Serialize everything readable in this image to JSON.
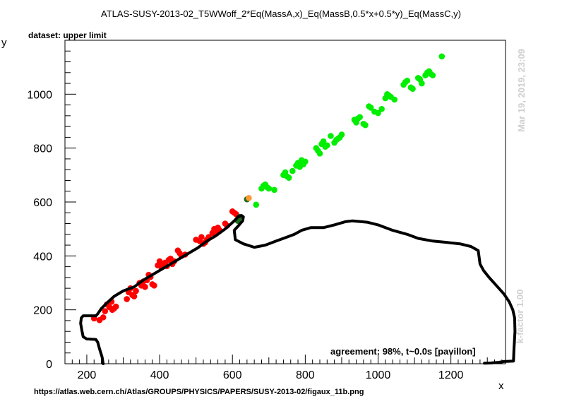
{
  "figure": {
    "title": "ATLAS-SUSY-2013-02_T5WWoff_2*Eq(MassA,x)_Eq(MassB,0.5*x+0.5*y)_Eq(MassC,y)",
    "subtitle": "dataset: upper limit",
    "source_url": "https://atlas.web.cern.ch/Atlas/GROUPS/PHYSICS/PAPERS/SUSY-2013-02/figaux_11b.png",
    "agreement": "agreement: 98%, t~0.0s [pavillon]",
    "timestamp": "Mar 19, 2019, 23:09",
    "kfactor": "k-factor 1.00"
  },
  "chart_data": {
    "type": "scatter",
    "xlabel": "x",
    "ylabel": "y",
    "xlim": [
      140,
      1350
    ],
    "ylim": [
      0,
      1200
    ],
    "xticks": [
      200,
      400,
      600,
      800,
      1000,
      1200
    ],
    "yticks": [
      0,
      200,
      400,
      600,
      800,
      1000
    ],
    "grid": false,
    "colors": {
      "excluded": "#ff0000",
      "allowed": "#00ee00",
      "border_excluded": "#1a6b1a",
      "border_allowed": "#ff9933",
      "limit_line": "#000000"
    },
    "series": [
      {
        "role": "excluded",
        "points": [
          [
            220,
            168
          ],
          [
            235,
            162
          ],
          [
            245,
            172
          ],
          [
            250,
            195
          ],
          [
            255,
            220
          ],
          [
            262,
            210
          ],
          [
            268,
            230
          ],
          [
            270,
            200
          ],
          [
            275,
            205
          ],
          [
            280,
            212
          ],
          [
            310,
            240
          ],
          [
            315,
            265
          ],
          [
            320,
            280
          ],
          [
            325,
            255
          ],
          [
            330,
            250
          ],
          [
            335,
            270
          ],
          [
            345,
            300
          ],
          [
            350,
            290
          ],
          [
            355,
            305
          ],
          [
            360,
            285
          ],
          [
            365,
            310
          ],
          [
            370,
            330
          ],
          [
            375,
            322
          ],
          [
            380,
            295
          ],
          [
            385,
            290
          ],
          [
            395,
            365
          ],
          [
            400,
            380
          ],
          [
            405,
            358
          ],
          [
            410,
            370
          ],
          [
            415,
            375
          ],
          [
            420,
            362
          ],
          [
            425,
            385
          ],
          [
            430,
            390
          ],
          [
            435,
            370
          ],
          [
            440,
            380
          ],
          [
            450,
            420
          ],
          [
            455,
            410
          ],
          [
            460,
            400
          ],
          [
            470,
            405
          ],
          [
            500,
            460
          ],
          [
            510,
            455
          ],
          [
            515,
            470
          ],
          [
            520,
            445
          ],
          [
            525,
            450
          ],
          [
            530,
            460
          ],
          [
            535,
            470
          ],
          [
            545,
            485
          ],
          [
            550,
            500
          ],
          [
            555,
            490
          ],
          [
            560,
            505
          ],
          [
            565,
            495
          ],
          [
            580,
            520
          ],
          [
            585,
            512
          ],
          [
            600,
            565
          ],
          [
            605,
            560
          ],
          [
            610,
            555
          ]
        ]
      },
      {
        "role": "allowed",
        "points": [
          [
            665,
            590
          ],
          [
            680,
            650
          ],
          [
            685,
            660
          ],
          [
            690,
            665
          ],
          [
            695,
            655
          ],
          [
            700,
            650
          ],
          [
            715,
            645
          ],
          [
            740,
            700
          ],
          [
            745,
            710
          ],
          [
            750,
            695
          ],
          [
            755,
            690
          ],
          [
            765,
            715
          ],
          [
            775,
            735
          ],
          [
            780,
            745
          ],
          [
            785,
            730
          ],
          [
            790,
            755
          ],
          [
            795,
            740
          ],
          [
            800,
            750
          ],
          [
            830,
            800
          ],
          [
            835,
            790
          ],
          [
            840,
            780
          ],
          [
            845,
            815
          ],
          [
            850,
            825
          ],
          [
            855,
            805
          ],
          [
            860,
            810
          ],
          [
            870,
            845
          ],
          [
            880,
            820
          ],
          [
            885,
            830
          ],
          [
            890,
            835
          ],
          [
            895,
            840
          ],
          [
            900,
            850
          ],
          [
            935,
            905
          ],
          [
            940,
            895
          ],
          [
            945,
            910
          ],
          [
            950,
            915
          ],
          [
            960,
            890
          ],
          [
            965,
            885
          ],
          [
            975,
            955
          ],
          [
            980,
            950
          ],
          [
            990,
            935
          ],
          [
            1000,
            930
          ],
          [
            1010,
            945
          ],
          [
            1020,
            985
          ],
          [
            1025,
            1000
          ],
          [
            1030,
            995
          ],
          [
            1035,
            990
          ],
          [
            1045,
            980
          ],
          [
            1070,
            1035
          ],
          [
            1075,
            1045
          ],
          [
            1080,
            1050
          ],
          [
            1090,
            1025
          ],
          [
            1095,
            1020
          ],
          [
            1110,
            1060
          ],
          [
            1115,
            1055
          ],
          [
            1120,
            1040
          ],
          [
            1130,
            1070
          ],
          [
            1135,
            1080
          ],
          [
            1140,
            1085
          ],
          [
            1145,
            1075
          ],
          [
            1150,
            1070
          ],
          [
            1175,
            1140
          ]
        ]
      },
      {
        "role": "border_excluded",
        "points": [
          [
            615,
            530
          ],
          [
            620,
            545
          ],
          [
            640,
            610
          ]
        ]
      },
      {
        "role": "border_allowed",
        "points": [
          [
            645,
            615
          ]
        ]
      }
    ],
    "limit_line": [
      [
        245,
        0
      ],
      [
        242,
        25
      ],
      [
        235,
        55
      ],
      [
        230,
        80
      ],
      [
        225,
        90
      ],
      [
        200,
        92
      ],
      [
        190,
        100
      ],
      [
        187,
        120
      ],
      [
        183,
        150
      ],
      [
        185,
        170
      ],
      [
        190,
        178
      ],
      [
        225,
        178
      ],
      [
        230,
        185
      ],
      [
        240,
        205
      ],
      [
        255,
        225
      ],
      [
        275,
        250
      ],
      [
        300,
        270
      ],
      [
        330,
        285
      ],
      [
        355,
        310
      ],
      [
        380,
        330
      ],
      [
        405,
        350
      ],
      [
        430,
        370
      ],
      [
        455,
        390
      ],
      [
        480,
        410
      ],
      [
        505,
        430
      ],
      [
        530,
        455
      ],
      [
        555,
        475
      ],
      [
        580,
        500
      ],
      [
        605,
        530
      ],
      [
        615,
        545
      ],
      [
        625,
        550
      ],
      [
        630,
        545
      ],
      [
        628,
        530
      ],
      [
        615,
        510
      ],
      [
        605,
        495
      ],
      [
        608,
        460
      ],
      [
        630,
        445
      ],
      [
        660,
        432
      ],
      [
        690,
        440
      ],
      [
        720,
        455
      ],
      [
        750,
        470
      ],
      [
        770,
        480
      ],
      [
        790,
        495
      ],
      [
        815,
        505
      ],
      [
        850,
        505
      ],
      [
        880,
        515
      ],
      [
        910,
        527
      ],
      [
        930,
        530
      ],
      [
        970,
        525
      ],
      [
        1000,
        515
      ],
      [
        1040,
        495
      ],
      [
        1080,
        480
      ],
      [
        1110,
        465
      ],
      [
        1150,
        455
      ],
      [
        1190,
        450
      ],
      [
        1225,
        445
      ],
      [
        1255,
        435
      ],
      [
        1275,
        420
      ],
      [
        1278,
        390
      ],
      [
        1280,
        370
      ],
      [
        1290,
        345
      ],
      [
        1305,
        320
      ],
      [
        1325,
        290
      ],
      [
        1345,
        260
      ],
      [
        1360,
        230
      ],
      [
        1370,
        200
      ],
      [
        1375,
        170
      ],
      [
        1376,
        120
      ],
      [
        1373,
        50
      ],
      [
        1372,
        10
      ],
      [
        1345,
        8
      ],
      [
        1330,
        5
      ],
      [
        1310,
        3
      ],
      [
        1292,
        2
      ]
    ]
  }
}
